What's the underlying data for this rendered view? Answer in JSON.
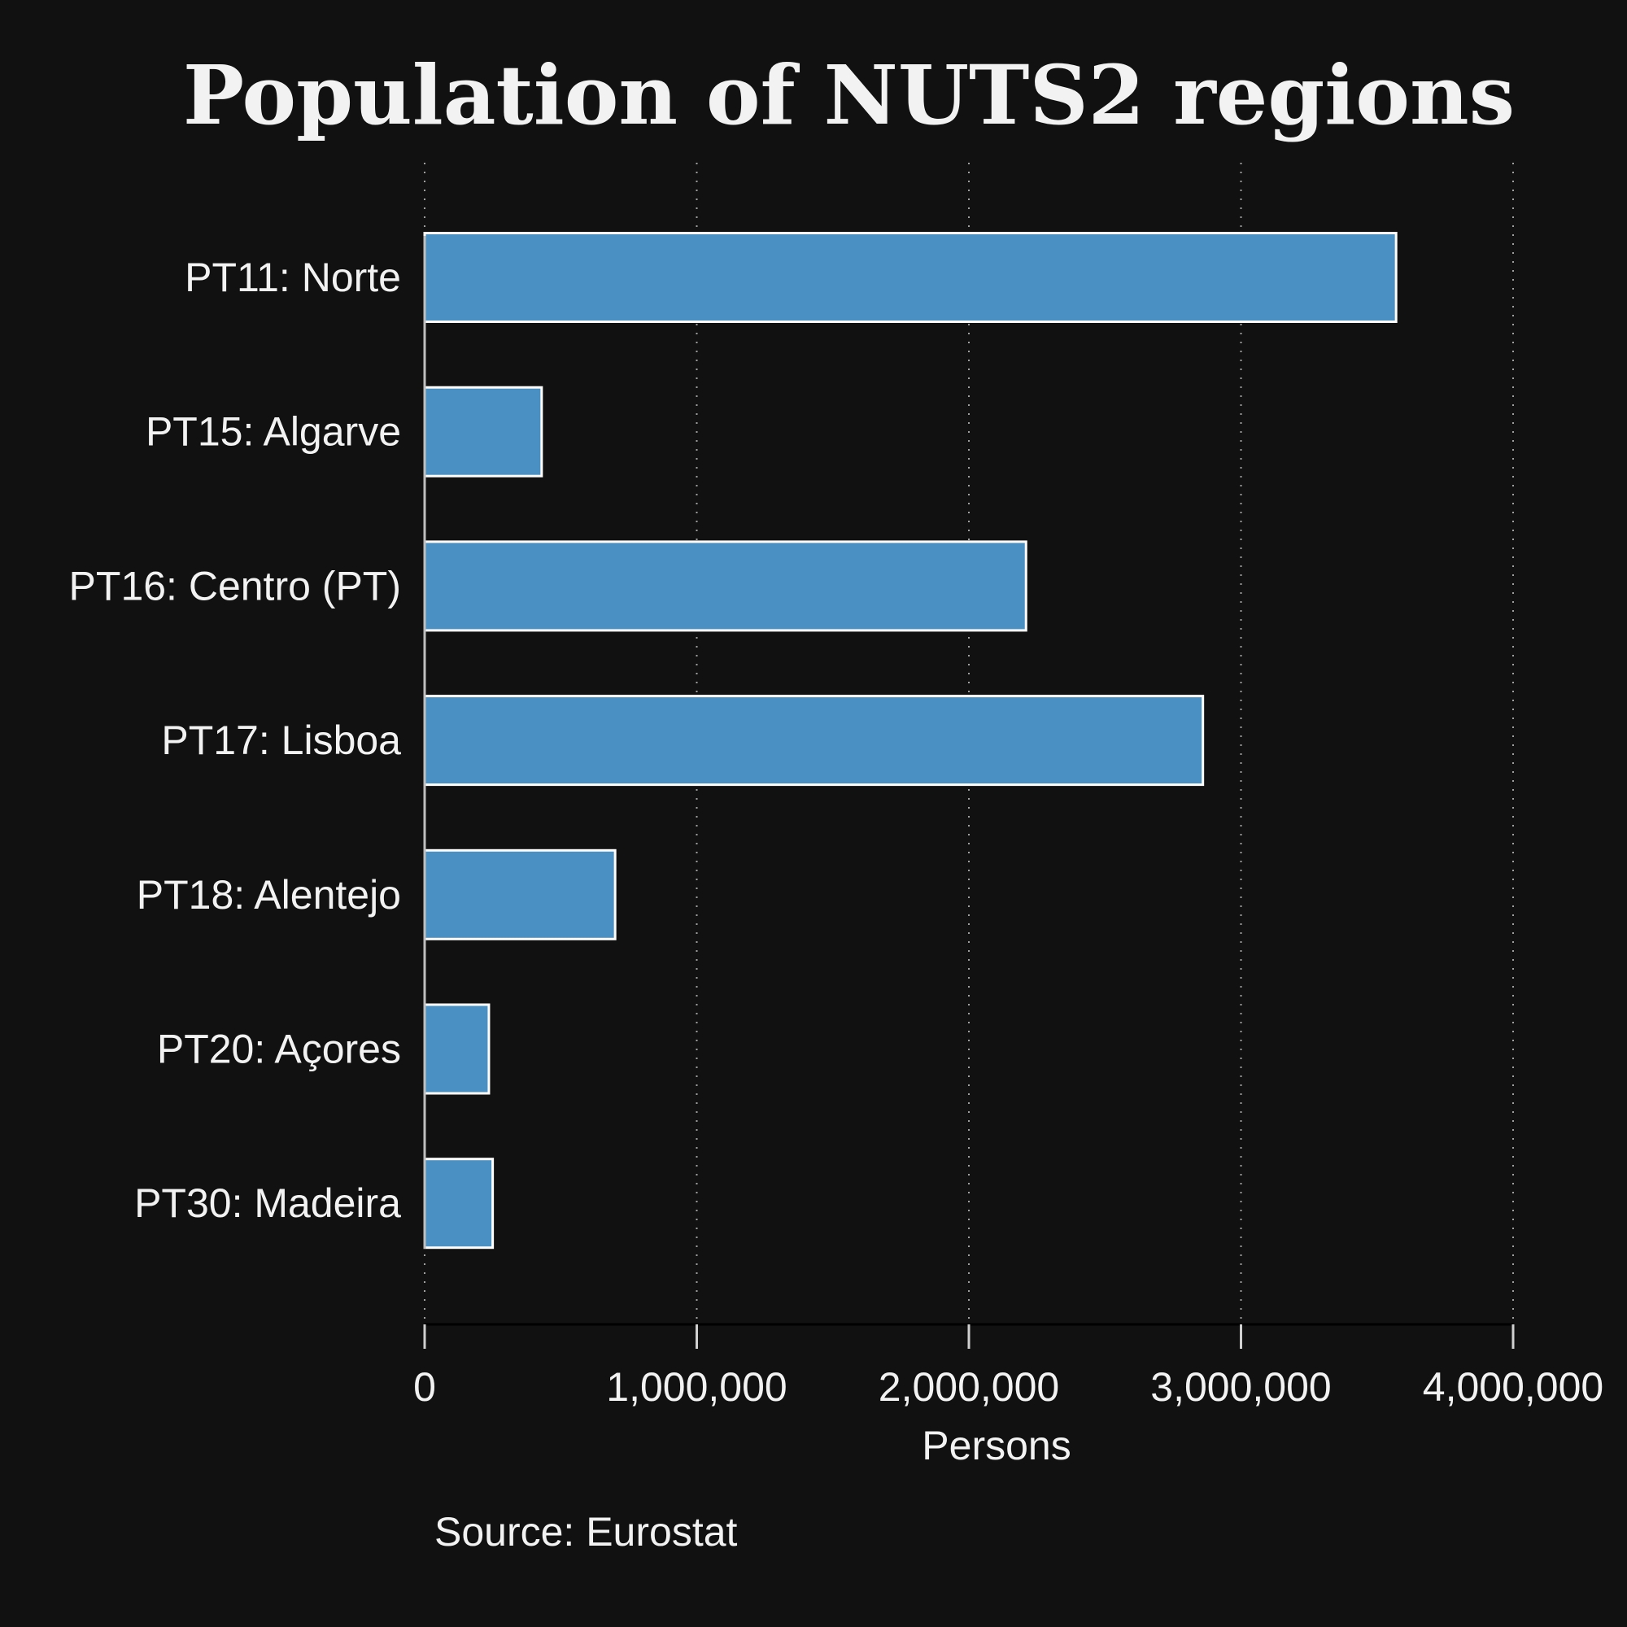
{
  "chart_data": {
    "type": "bar",
    "orientation": "horizontal",
    "title": "Population of NUTS2 regions",
    "xlabel": "Persons",
    "ylabel": "",
    "categories": [
      "PT11: Norte",
      "PT15: Algarve",
      "PT16: Centro (PT)",
      "PT17: Lisboa",
      "PT18: Alentejo",
      "PT20: Açores",
      "PT30: Madeira"
    ],
    "values": [
      3570000,
      430000,
      2210000,
      2860000,
      700000,
      236000,
      250000
    ],
    "xlim": [
      0,
      4000000
    ],
    "xticks": [
      0,
      1000000,
      2000000,
      3000000,
      4000000
    ],
    "xtick_labels": [
      "0",
      "1,000,000",
      "2,000,000",
      "3,000,000",
      "4,000,000"
    ],
    "grid": "vertical dotted",
    "legend": "none",
    "source": "Source: Eurostat",
    "colors": {
      "background": "#111111",
      "bar_fill": "#4a90c2",
      "bar_stroke": "#ffffff",
      "text": "#f2f2f2",
      "grid": "#a0a0a0"
    }
  }
}
